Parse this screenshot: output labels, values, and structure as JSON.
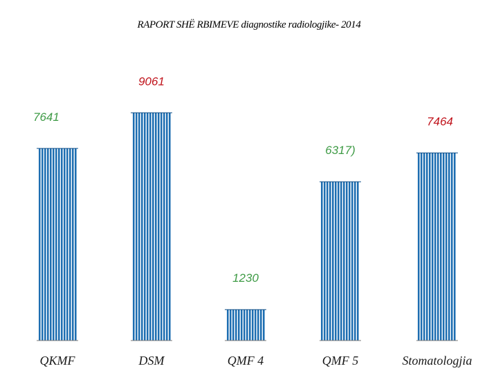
{
  "colors": {
    "bar": "#1f6fb2",
    "bar_dark": "#0d4d86",
    "label_green": "#3f9b46",
    "label_red": "#c0141c"
  },
  "chart_data": {
    "type": "bar",
    "title": "RAPORT SHË RBIMEVE diagnostike radiologjike- 2014",
    "categories": [
      "QKMF",
      "DSM",
      "QMF 4",
      "QMF 5",
      "Stomatologjia"
    ],
    "values": [
      7641,
      9061,
      1230,
      6317,
      7464
    ],
    "data_labels": [
      "7641",
      "9061",
      "1230",
      "6317)",
      "7464"
    ],
    "label_colors": [
      "green",
      "red",
      "green",
      "green",
      "red"
    ],
    "ylim": [
      0,
      9700
    ],
    "grid": false,
    "xlabel": "",
    "ylabel": ""
  }
}
